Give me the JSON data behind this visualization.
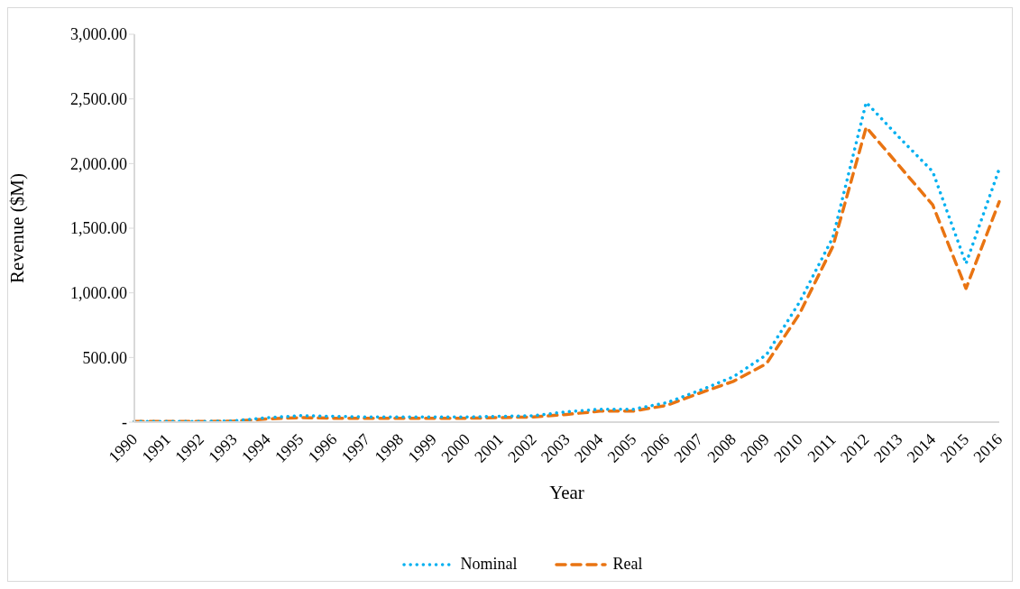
{
  "chart_data": {
    "type": "line",
    "xlabel": "Year",
    "ylabel": "Revenue ($M)",
    "categories": [
      "1990",
      "1991",
      "1992",
      "1993",
      "1994",
      "1995",
      "1996",
      "1997",
      "1998",
      "1999",
      "2000",
      "2001",
      "2002",
      "2003",
      "2004",
      "2005",
      "2006",
      "2007",
      "2008",
      "2009",
      "2010",
      "2011",
      "2012",
      "2013",
      "2014",
      "2015",
      "2016"
    ],
    "series": [
      {
        "name": "Nominal",
        "color": "#00b0f0",
        "line_style": "dotted",
        "values": [
          5,
          5,
          5,
          10,
          35,
          50,
          45,
          40,
          40,
          40,
          40,
          45,
          50,
          80,
          100,
          100,
          150,
          245,
          350,
          520,
          930,
          1430,
          2473,
          2200,
          1938,
          1226,
          1959
        ]
      },
      {
        "name": "Real",
        "color": "#e97412",
        "line_style": "dashed",
        "values": [
          5,
          5,
          5,
          8,
          25,
          35,
          30,
          30,
          30,
          30,
          30,
          35,
          40,
          60,
          85,
          85,
          130,
          225,
          315,
          452,
          840,
          1360,
          2281,
          1980,
          1680,
          1034,
          1705
        ]
      }
    ],
    "ylim": [
      0,
      3000
    ],
    "yticks": [
      {
        "value": 0,
        "label": "-"
      },
      {
        "value": 500,
        "label": "500.00"
      },
      {
        "value": 1000,
        "label": "1,000.00"
      },
      {
        "value": 1500,
        "label": "1,500.00"
      },
      {
        "value": 2000,
        "label": "2,000.00"
      },
      {
        "value": 2500,
        "label": "2,500.00"
      },
      {
        "value": 3000,
        "label": "3,000.00"
      }
    ],
    "grid": false,
    "legend": "bottom",
    "marker": "none"
  }
}
